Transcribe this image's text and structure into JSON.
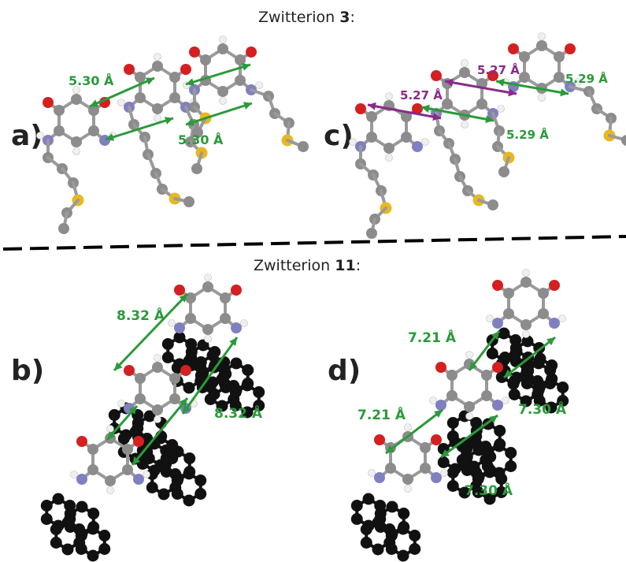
{
  "titles": {
    "top": {
      "prefix": "Zwitterion ",
      "number": "3",
      "suffix": ":"
    },
    "bottom": {
      "prefix": "Zwitterion ",
      "number": "11",
      "suffix": ":"
    }
  },
  "panels": {
    "a": {
      "label": "a)",
      "distances": [
        "5.30 Å",
        "5.30 Å"
      ]
    },
    "c": {
      "label": "c)",
      "distances": [
        "5.27 Å",
        "5.27 Å",
        "5.29 Å",
        "5.29 Å"
      ]
    },
    "b": {
      "label": "b)",
      "distances": [
        "8.32 Å",
        "8.32 Å"
      ]
    },
    "d": {
      "label": "d)",
      "distances": [
        "7.21 Å",
        "7.21 Å",
        "7.30 Å",
        "7.30 Å"
      ]
    }
  },
  "colors": {
    "carbon": "#8c8c8c",
    "oxygen": "#d42020",
    "nitrogen": "#8080c0",
    "sulfur": "#e8b820",
    "hydrogen": "#f0f0f0",
    "bond": "#9a9a9a",
    "aromatic": "#111111",
    "green_arrow": "#2a9a3a",
    "purple_arrow": "#8a2a8a",
    "divider": "#000000"
  }
}
